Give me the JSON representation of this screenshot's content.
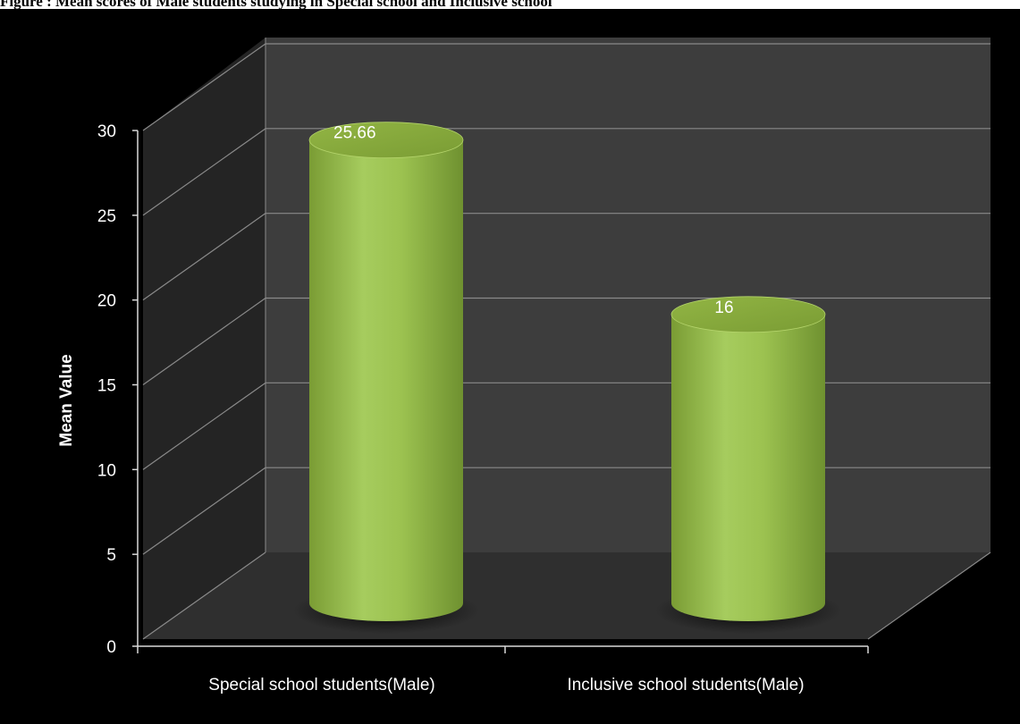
{
  "caption": "Figure : Mean scores of Male students studying in Special school and Inclusive school",
  "chart_data": {
    "type": "bar",
    "style": "3d-cylinder",
    "categories": [
      "Special school students(Male)",
      "Inclusive school students(Male)"
    ],
    "values": [
      25.66,
      16
    ],
    "data_labels": [
      "25.66",
      "16"
    ],
    "title": "",
    "xlabel": "",
    "ylabel": "Mean Value",
    "ylim": [
      0,
      30
    ],
    "yticks": [
      "0",
      "5",
      "10",
      "15",
      "20",
      "25",
      "30"
    ],
    "grid": true,
    "legend": "none",
    "colors": {
      "background": "#000000",
      "back_wall": "#3d3d3d",
      "side_wall": "#1e1e1e",
      "floor": "#2e2e2e",
      "gridline": "#8a8a8a",
      "bar": "#93b747",
      "bar_top": "#86ab3a",
      "text": "#ffffff"
    }
  }
}
